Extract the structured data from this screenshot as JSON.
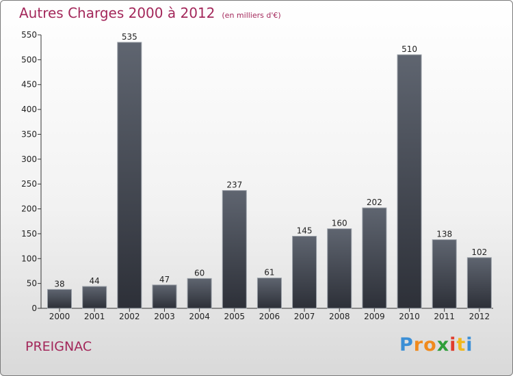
{
  "chart_data": {
    "type": "bar",
    "title": "Autres Charges 2000 à 2012",
    "subtitle": "(en milliers d'€)",
    "categories": [
      "2000",
      "2001",
      "2002",
      "2003",
      "2004",
      "2005",
      "2006",
      "2007",
      "2008",
      "2009",
      "2010",
      "2011",
      "2012"
    ],
    "values": [
      38,
      44,
      535,
      47,
      60,
      237,
      61,
      145,
      160,
      202,
      510,
      138,
      102
    ],
    "ylim": [
      0,
      550
    ],
    "yticks": [
      0,
      50,
      100,
      150,
      200,
      250,
      300,
      350,
      400,
      450,
      500,
      550
    ],
    "grid": false,
    "colors": {
      "bar_top": "#5f6570",
      "bar_bottom": "#2d3038",
      "title": "#a3275a"
    }
  },
  "commune": "PREIGNAC",
  "logo": {
    "letters": [
      "P",
      "r",
      "o",
      "x",
      "i",
      "t",
      "i"
    ],
    "colors": [
      "#3b8fd6",
      "#f08a1d",
      "#f08a1d",
      "#2e9e3a",
      "#e03c2c",
      "#f0b81d",
      "#3b8fd6"
    ]
  }
}
